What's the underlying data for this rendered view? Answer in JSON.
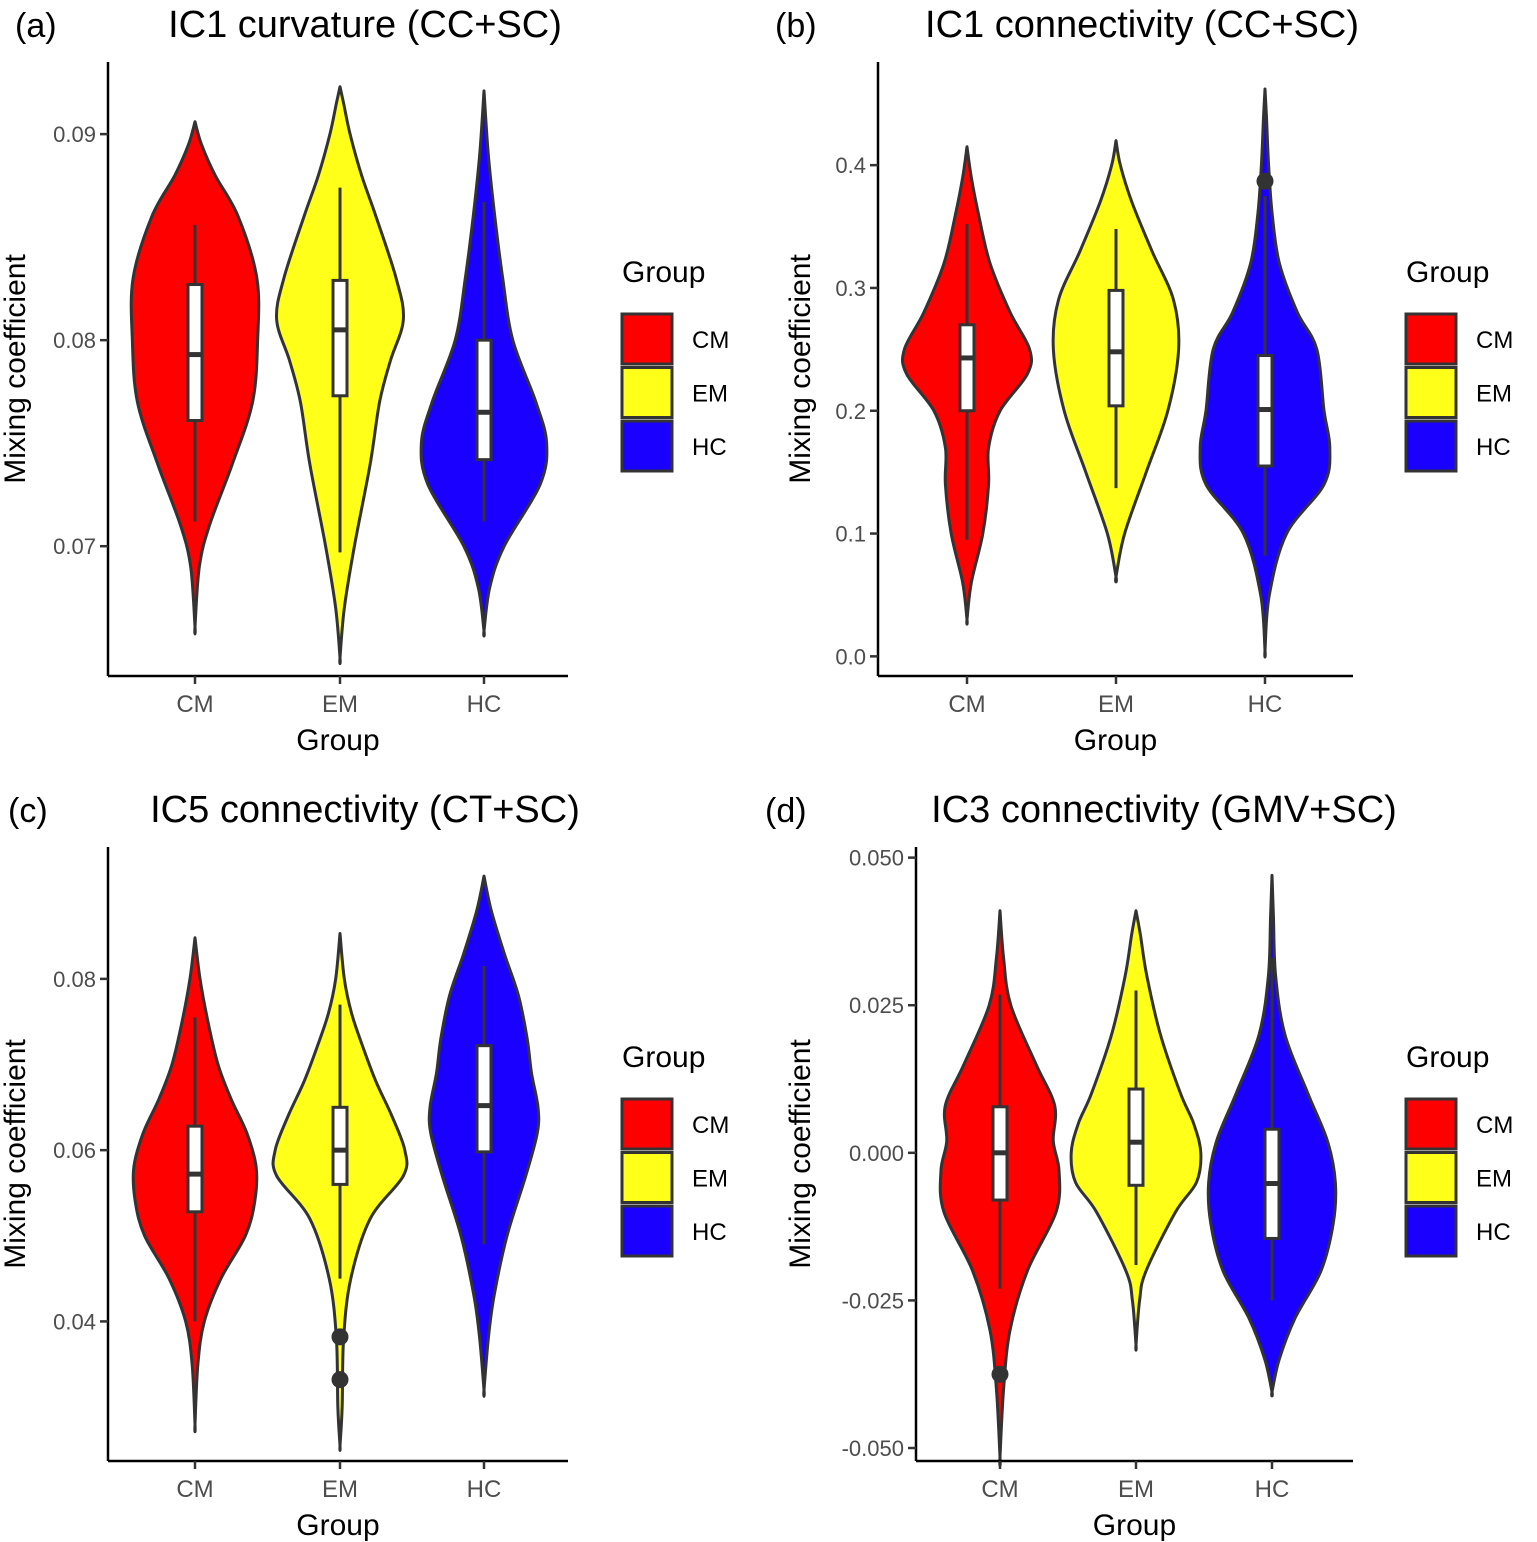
{
  "chart_data": [
    {
      "type": "violin",
      "panel_label": "(a)",
      "title": "IC1 curvature (CC+SC)",
      "xlabel": "Group",
      "ylabel": "Mixing coefficient",
      "categories": [
        "CM",
        "EM",
        "HC"
      ],
      "ylim": [
        0.0637,
        0.0935
      ],
      "yticks": [
        0.07,
        0.08,
        0.09
      ],
      "ytick_labels": [
        "0.07",
        "0.08",
        "0.09"
      ],
      "legend": {
        "title": "Group",
        "entries": [
          "CM",
          "EM",
          "HC"
        ],
        "position": "right"
      },
      "series": [
        {
          "name": "CM",
          "color": "#ff0000",
          "min": 0.0661,
          "max": 0.0906,
          "box": {
            "whisker_low": 0.0712,
            "q1": 0.0761,
            "median": 0.0793,
            "q3": 0.0827,
            "whisker_high": 0.0856
          },
          "outliers": [],
          "density": [
            [
              0.0661,
              0.0
            ],
            [
              0.069,
              0.06
            ],
            [
              0.071,
              0.2
            ],
            [
              0.074,
              0.52
            ],
            [
              0.077,
              0.8
            ],
            [
              0.08,
              0.87
            ],
            [
              0.083,
              0.86
            ],
            [
              0.086,
              0.6
            ],
            [
              0.088,
              0.28
            ],
            [
              0.0895,
              0.09
            ],
            [
              0.0906,
              0.0
            ]
          ]
        },
        {
          "name": "EM",
          "color": "#ffff19",
          "min": 0.0646,
          "max": 0.0923,
          "box": {
            "whisker_low": 0.0697,
            "q1": 0.0773,
            "median": 0.0805,
            "q3": 0.0829,
            "whisker_high": 0.0874
          },
          "outliers": [],
          "density": [
            [
              0.0646,
              0.0
            ],
            [
              0.067,
              0.06
            ],
            [
              0.07,
              0.2
            ],
            [
              0.074,
              0.42
            ],
            [
              0.077,
              0.55
            ],
            [
              0.079,
              0.7
            ],
            [
              0.081,
              0.88
            ],
            [
              0.083,
              0.78
            ],
            [
              0.086,
              0.5
            ],
            [
              0.088,
              0.3
            ],
            [
              0.09,
              0.14
            ],
            [
              0.0915,
              0.05
            ],
            [
              0.0923,
              0.0
            ]
          ]
        },
        {
          "name": "HC",
          "color": "#1900ff",
          "min": 0.0659,
          "max": 0.0921,
          "box": {
            "whisker_low": 0.0712,
            "q1": 0.0742,
            "median": 0.0765,
            "q3": 0.08,
            "whisker_high": 0.0867
          },
          "outliers": [],
          "density": [
            [
              0.0659,
              0.0
            ],
            [
              0.068,
              0.08
            ],
            [
              0.07,
              0.28
            ],
            [
              0.073,
              0.78
            ],
            [
              0.075,
              0.87
            ],
            [
              0.077,
              0.72
            ],
            [
              0.08,
              0.4
            ],
            [
              0.083,
              0.26
            ],
            [
              0.086,
              0.15
            ],
            [
              0.089,
              0.06
            ],
            [
              0.0921,
              0.0
            ]
          ]
        }
      ]
    },
    {
      "type": "violin",
      "panel_label": "(b)",
      "title": "IC1 connectivity (CC+SC)",
      "xlabel": "Group",
      "ylabel": "Mixing coefficient",
      "categories": [
        "CM",
        "EM",
        "HC"
      ],
      "ylim": [
        -0.016,
        0.484
      ],
      "yticks": [
        0.0,
        0.1,
        0.2,
        0.3,
        0.4
      ],
      "ytick_labels": [
        "0.0",
        "0.1",
        "0.2",
        "0.3",
        "0.4"
      ],
      "legend": {
        "title": "Group",
        "entries": [
          "CM",
          "EM",
          "HC"
        ],
        "position": "right"
      },
      "series": [
        {
          "name": "CM",
          "color": "#ff0000",
          "min": 0.03,
          "max": 0.415,
          "box": {
            "whisker_low": 0.095,
            "q1": 0.2,
            "median": 0.243,
            "q3": 0.27,
            "whisker_high": 0.352
          },
          "outliers": [],
          "density": [
            [
              0.03,
              0.0
            ],
            [
              0.06,
              0.06
            ],
            [
              0.1,
              0.22
            ],
            [
              0.14,
              0.3
            ],
            [
              0.17,
              0.3
            ],
            [
              0.2,
              0.46
            ],
            [
              0.23,
              0.84
            ],
            [
              0.25,
              0.87
            ],
            [
              0.28,
              0.6
            ],
            [
              0.32,
              0.32
            ],
            [
              0.36,
              0.16
            ],
            [
              0.39,
              0.06
            ],
            [
              0.415,
              0.0
            ]
          ]
        },
        {
          "name": "EM",
          "color": "#ffff19",
          "min": 0.065,
          "max": 0.42,
          "box": {
            "whisker_low": 0.137,
            "q1": 0.204,
            "median": 0.248,
            "q3": 0.298,
            "whisker_high": 0.348
          },
          "outliers": [],
          "density": [
            [
              0.065,
              0.0
            ],
            [
              0.1,
              0.12
            ],
            [
              0.15,
              0.42
            ],
            [
              0.2,
              0.72
            ],
            [
              0.25,
              0.87
            ],
            [
              0.29,
              0.8
            ],
            [
              0.33,
              0.5
            ],
            [
              0.37,
              0.22
            ],
            [
              0.4,
              0.06
            ],
            [
              0.42,
              0.0
            ]
          ]
        },
        {
          "name": "HC",
          "color": "#1900ff",
          "min": 0.005,
          "max": 0.462,
          "box": {
            "whisker_low": 0.082,
            "q1": 0.155,
            "median": 0.201,
            "q3": 0.245,
            "whisker_high": 0.375
          },
          "outliers": [
            0.387
          ],
          "density": [
            [
              0.005,
              0.0
            ],
            [
              0.05,
              0.06
            ],
            [
              0.1,
              0.3
            ],
            [
              0.14,
              0.82
            ],
            [
              0.17,
              0.9
            ],
            [
              0.2,
              0.82
            ],
            [
              0.25,
              0.72
            ],
            [
              0.28,
              0.45
            ],
            [
              0.32,
              0.2
            ],
            [
              0.36,
              0.1
            ],
            [
              0.4,
              0.05
            ],
            [
              0.44,
              0.02
            ],
            [
              0.462,
              0.0
            ]
          ]
        }
      ]
    },
    {
      "type": "violin",
      "panel_label": "(c)",
      "title": "IC5 connectivity (CT+SC)",
      "xlabel": "Group",
      "ylabel": "Mixing coefficient",
      "categories": [
        "CM",
        "EM",
        "HC"
      ],
      "ylim": [
        0.0237,
        0.0954
      ],
      "yticks": [
        0.04,
        0.06,
        0.08
      ],
      "ytick_labels": [
        "0.04",
        "0.06",
        "0.08"
      ],
      "legend": {
        "title": "Group",
        "entries": [
          "CM",
          "EM",
          "HC"
        ],
        "position": "right"
      },
      "series": [
        {
          "name": "CM",
          "color": "#ff0000",
          "min": 0.028,
          "max": 0.0848,
          "box": {
            "whisker_low": 0.04,
            "q1": 0.0528,
            "median": 0.0572,
            "q3": 0.0628,
            "whisker_high": 0.0755
          },
          "outliers": [],
          "density": [
            [
              0.028,
              0.0
            ],
            [
              0.035,
              0.04
            ],
            [
              0.04,
              0.13
            ],
            [
              0.045,
              0.36
            ],
            [
              0.05,
              0.7
            ],
            [
              0.054,
              0.83
            ],
            [
              0.058,
              0.85
            ],
            [
              0.062,
              0.72
            ],
            [
              0.066,
              0.5
            ],
            [
              0.07,
              0.32
            ],
            [
              0.075,
              0.18
            ],
            [
              0.08,
              0.07
            ],
            [
              0.0848,
              0.0
            ]
          ]
        },
        {
          "name": "EM",
          "color": "#ffff19",
          "min": 0.0255,
          "max": 0.0853,
          "box": {
            "whisker_low": 0.045,
            "q1": 0.056,
            "median": 0.06,
            "q3": 0.065,
            "whisker_high": 0.077
          },
          "outliers": [
            0.0332,
            0.0382
          ],
          "density": [
            [
              0.0255,
              0.0
            ],
            [
              0.03,
              0.03
            ],
            [
              0.038,
              0.05
            ],
            [
              0.045,
              0.15
            ],
            [
              0.052,
              0.42
            ],
            [
              0.057,
              0.88
            ],
            [
              0.06,
              0.9
            ],
            [
              0.064,
              0.72
            ],
            [
              0.068,
              0.5
            ],
            [
              0.072,
              0.32
            ],
            [
              0.076,
              0.16
            ],
            [
              0.08,
              0.06
            ],
            [
              0.0853,
              0.0
            ]
          ]
        },
        {
          "name": "HC",
          "color": "#1900ff",
          "min": 0.032,
          "max": 0.092,
          "box": {
            "whisker_low": 0.049,
            "q1": 0.0598,
            "median": 0.0652,
            "q3": 0.0722,
            "whisker_high": 0.0815
          },
          "outliers": [],
          "density": [
            [
              0.032,
              0.0
            ],
            [
              0.038,
              0.06
            ],
            [
              0.043,
              0.14
            ],
            [
              0.05,
              0.32
            ],
            [
              0.057,
              0.58
            ],
            [
              0.062,
              0.74
            ],
            [
              0.065,
              0.75
            ],
            [
              0.069,
              0.66
            ],
            [
              0.073,
              0.6
            ],
            [
              0.078,
              0.48
            ],
            [
              0.083,
              0.28
            ],
            [
              0.088,
              0.1
            ],
            [
              0.092,
              0.0
            ]
          ]
        }
      ]
    },
    {
      "type": "violin",
      "panel_label": "(d)",
      "title": "IC3 connectivity (GMV+SC)",
      "xlabel": "Group",
      "ylabel": "Mixing coefficient",
      "categories": [
        "CM",
        "EM",
        "HC"
      ],
      "ylim": [
        -0.0522,
        0.0518
      ],
      "yticks": [
        -0.05,
        -0.025,
        0.0,
        0.025,
        0.05
      ],
      "ytick_labels": [
        "-0.050",
        "-0.025",
        "0.000",
        "0.025",
        "0.050"
      ],
      "legend": {
        "title": "Group",
        "entries": [
          "CM",
          "EM",
          "HC"
        ],
        "position": "right"
      },
      "series": [
        {
          "name": "CM",
          "color": "#ff0000",
          "min": -0.0515,
          "max": 0.041,
          "box": {
            "whisker_low": -0.023,
            "q1": -0.008,
            "median": 0.0,
            "q3": 0.0078,
            "whisker_high": 0.0268
          },
          "outliers": [
            -0.0375
          ],
          "density": [
            [
              -0.0515,
              0.0
            ],
            [
              -0.04,
              0.05
            ],
            [
              -0.03,
              0.14
            ],
            [
              -0.02,
              0.38
            ],
            [
              -0.01,
              0.78
            ],
            [
              -0.003,
              0.82
            ],
            [
              0.002,
              0.74
            ],
            [
              0.008,
              0.76
            ],
            [
              0.015,
              0.5
            ],
            [
              0.025,
              0.15
            ],
            [
              0.033,
              0.05
            ],
            [
              0.041,
              0.0
            ]
          ]
        },
        {
          "name": "EM",
          "color": "#ffff19",
          "min": -0.0325,
          "max": 0.041,
          "box": {
            "whisker_low": -0.019,
            "q1": -0.0055,
            "median": 0.0018,
            "q3": 0.0108,
            "whisker_high": 0.0275
          },
          "outliers": [],
          "density": [
            [
              -0.0325,
              0.0
            ],
            [
              -0.025,
              0.05
            ],
            [
              -0.02,
              0.14
            ],
            [
              -0.01,
              0.55
            ],
            [
              -0.005,
              0.84
            ],
            [
              0.0,
              0.9
            ],
            [
              0.005,
              0.8
            ],
            [
              0.01,
              0.62
            ],
            [
              0.02,
              0.34
            ],
            [
              0.03,
              0.15
            ],
            [
              0.037,
              0.06
            ],
            [
              0.041,
              0.0
            ]
          ]
        },
        {
          "name": "HC",
          "color": "#1900ff",
          "min": -0.0405,
          "max": 0.047,
          "box": {
            "whisker_low": -0.025,
            "q1": -0.0145,
            "median": -0.0052,
            "q3": 0.004,
            "whisker_high": 0.033
          },
          "outliers": [],
          "density": [
            [
              -0.0405,
              0.0
            ],
            [
              -0.035,
              0.1
            ],
            [
              -0.028,
              0.32
            ],
            [
              -0.02,
              0.68
            ],
            [
              -0.012,
              0.85
            ],
            [
              -0.005,
              0.88
            ],
            [
              0.002,
              0.77
            ],
            [
              0.01,
              0.5
            ],
            [
              0.02,
              0.18
            ],
            [
              0.03,
              0.05
            ],
            [
              0.04,
              0.02
            ],
            [
              0.047,
              0.0
            ]
          ]
        }
      ]
    }
  ]
}
